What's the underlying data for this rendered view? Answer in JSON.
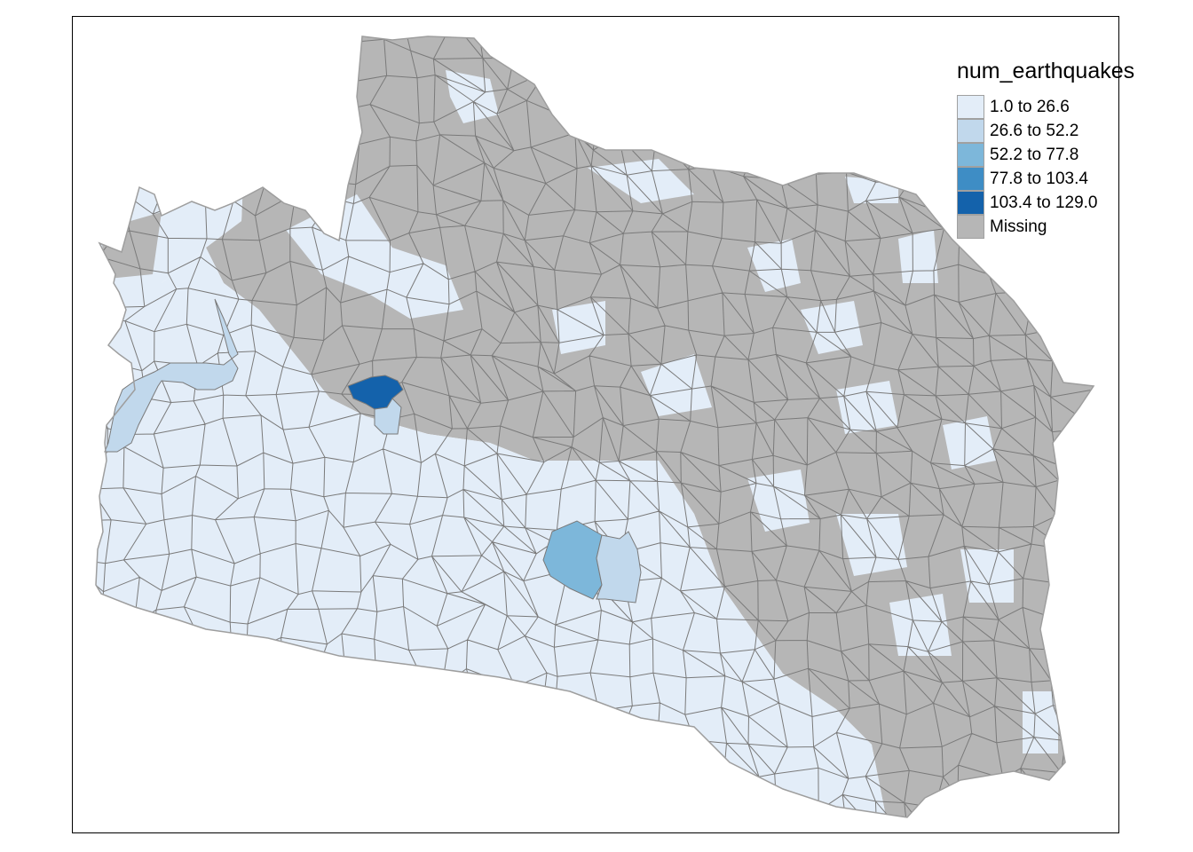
{
  "legend": {
    "title": "num_earthquakes",
    "items": [
      {
        "label": "1.0 to 26.6",
        "color": "#e3edf8"
      },
      {
        "label": "26.6 to 52.2",
        "color": "#c1d8ec"
      },
      {
        "label": "52.2 to 77.8",
        "color": "#7db7da"
      },
      {
        "label": "77.8 to 103.4",
        "color": "#3e8dc5"
      },
      {
        "label": "103.4 to 129.0",
        "color": "#1462ab"
      },
      {
        "label": "Missing",
        "color": "#b6b6b6"
      }
    ]
  },
  "colors": {
    "border": "#7a7a7a",
    "outline": "#9e9e9e",
    "frame": "#000000"
  },
  "map_data": {
    "variable": "num_earthquakes",
    "classes": [
      "1.0 to 26.6",
      "26.6 to 52.2",
      "52.2 to 77.8",
      "77.8 to 103.4",
      "103.4 to 129.0",
      "Missing"
    ],
    "highlighted_regions": [
      {
        "area": "west-central",
        "class": "103.4 to 129.0"
      },
      {
        "area": "south-central",
        "class": "52.2 to 77.8"
      },
      {
        "area": "south-central (east neighbour)",
        "class": "26.6 to 52.2"
      },
      {
        "area": "west",
        "class": "26.6 to 52.2"
      }
    ]
  }
}
